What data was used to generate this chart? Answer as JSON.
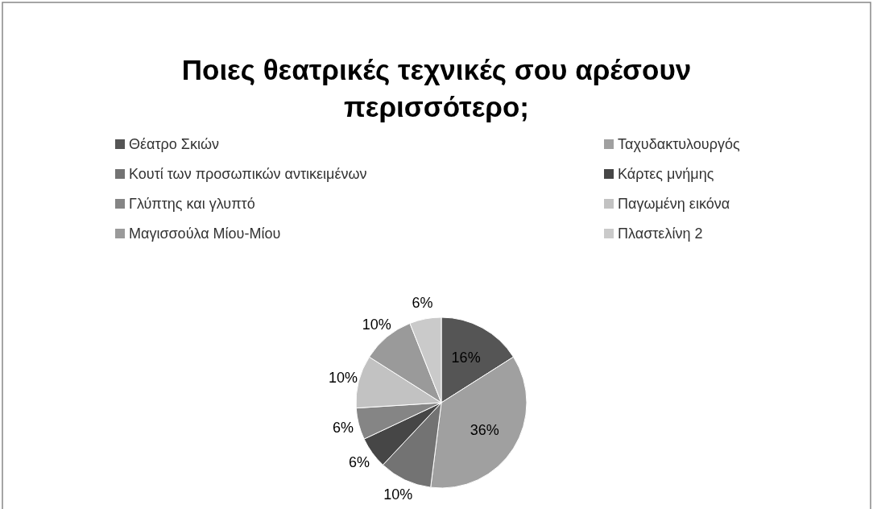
{
  "chart_data": {
    "type": "pie",
    "title": "Ποιες θεατρικές τεχνικές σου αρέσουν περισσότερο;",
    "categories": [
      "Θέατρο Σκιών",
      "Ταχυδακτυλουργός",
      "Κουτί των προσωπικών αντικειμένων",
      "Κάρτες μνήμης",
      "Γλύπτης και γλυπτό",
      "Παγωμένη εικόνα",
      "Μαγισσούλα Μίου-Μίου",
      "Πλαστελίνη 2"
    ],
    "values": [
      16,
      36,
      10,
      6,
      6,
      10,
      10,
      6
    ],
    "colors": [
      "#555555",
      "#a0a0a0",
      "#737373",
      "#464646",
      "#858585",
      "#c2c2c2",
      "#9a9a9a",
      "#cacaca"
    ],
    "value_labels": [
      "16%",
      "36%",
      "10%",
      "6%",
      "6%",
      "10%",
      "10%",
      "6%"
    ],
    "legend": "top"
  }
}
